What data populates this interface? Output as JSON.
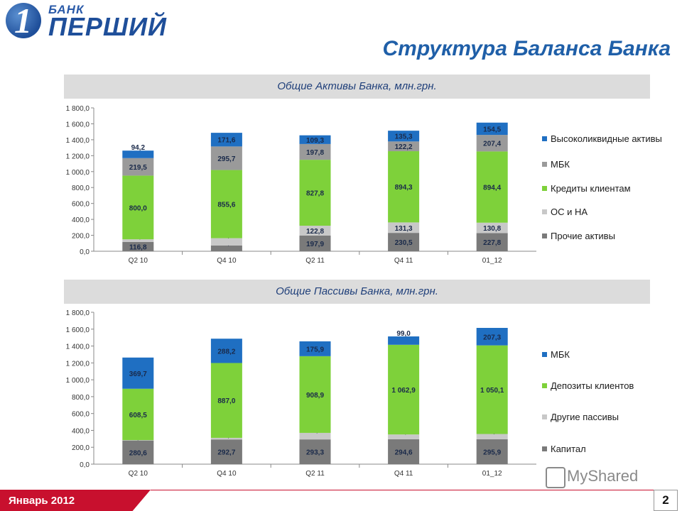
{
  "brand": {
    "bank_word": "БАНК",
    "name": "ПЕРШИЙ",
    "digit": "1"
  },
  "title": "Структура Баланса Банка",
  "footer": {
    "date": "Январь 2012",
    "page": "2"
  },
  "watermark": {
    "text": "MyShared"
  },
  "colors": {
    "dark_gray": "#7a7a7a",
    "light_gray": "#c8c8c8",
    "green": "#7ed13a",
    "medium_gray": "#9a9a9a",
    "blue": "#1f6fc2",
    "accent_red": "#c8102e"
  },
  "chart_data": [
    {
      "type": "bar",
      "stacked": true,
      "title": "Общие Активы Банка, млн.грн.",
      "categories": [
        "Q2 10",
        "Q4 10",
        "Q2 11",
        "Q4 11",
        "01_12"
      ],
      "ylim": [
        0,
        1800
      ],
      "yticks": [
        "0,0",
        "200,0",
        "400,0",
        "600,0",
        "800,0",
        "1 000,0",
        "1 200,0",
        "1 400,0",
        "1 600,0",
        "1 800,0"
      ],
      "series": [
        {
          "name": "Прочие активы",
          "values": [
            116.8,
            72.9,
            197.9,
            230.5,
            227.8
          ],
          "labels": [
            "116,8",
            "72,9",
            "197,9",
            "230,5",
            "227,8"
          ],
          "color": "#7a7a7a"
        },
        {
          "name": "ОС и НА",
          "values": [
            32.9,
            91.3,
            122.8,
            131.3,
            130.8
          ],
          "labels": [
            "32,9",
            "91,3",
            "122,8",
            "131,3",
            "130,8"
          ],
          "color": "#c8c8c8"
        },
        {
          "name": "Кредиты клиентам",
          "values": [
            800.0,
            855.6,
            827.8,
            894.3,
            894.4
          ],
          "labels": [
            "800,0",
            "855,6",
            "827,8",
            "894,3",
            "894,4"
          ],
          "color": "#7ed13a"
        },
        {
          "name": "МБК",
          "values": [
            219.5,
            295.7,
            197.8,
            122.2,
            207.4
          ],
          "labels": [
            "219,5",
            "295,7",
            "197,8",
            "122,2",
            "207,4"
          ],
          "color": "#9a9a9a"
        },
        {
          "name": "Высоколиквидные активы",
          "values": [
            94.2,
            171.6,
            109.3,
            135.3,
            154.5
          ],
          "labels": [
            "94,2",
            "171,6",
            "109,3",
            "135,3",
            "154,5"
          ],
          "color": "#1f6fc2"
        }
      ],
      "legend": "right"
    },
    {
      "type": "bar",
      "stacked": true,
      "title": "Общие Пассивы Банка, млн.грн.",
      "categories": [
        "Q2 10",
        "Q4 10",
        "Q2 11",
        "Q4 11",
        "01_12"
      ],
      "ylim": [
        0,
        1800
      ],
      "yticks": [
        "0,0",
        "200,0",
        "400,0",
        "600,0",
        "800,0",
        "1 000,0",
        "1 200,0",
        "1 400,0",
        "1 600,0",
        "1 800,0"
      ],
      "series": [
        {
          "name": "Капитал",
          "values": [
            280.6,
            292.7,
            293.3,
            294.6,
            295.9
          ],
          "labels": [
            "280,6",
            "292,7",
            "293,3",
            "294,6",
            "295,9"
          ],
          "color": "#7a7a7a"
        },
        {
          "name": "Другие пассивы",
          "values": [
            4.6,
            19.1,
            77.4,
            57.3,
            61.6
          ],
          "labels": [
            "4,6",
            "19,1",
            "77,4",
            "57,3",
            "61,6"
          ],
          "color": "#c8c8c8"
        },
        {
          "name": "Депозиты клиентов",
          "values": [
            608.5,
            887.0,
            908.9,
            1062.9,
            1050.1
          ],
          "labels": [
            "608,5",
            "887,0",
            "908,9",
            "1 062,9",
            "1 050,1"
          ],
          "color": "#7ed13a"
        },
        {
          "name": "МБК",
          "values": [
            369.7,
            288.2,
            175.9,
            99.0,
            207.3
          ],
          "labels": [
            "369,7",
            "288,2",
            "175,9",
            "99,0",
            "207,3"
          ],
          "color": "#1f6fc2"
        }
      ],
      "legend": "right"
    }
  ]
}
